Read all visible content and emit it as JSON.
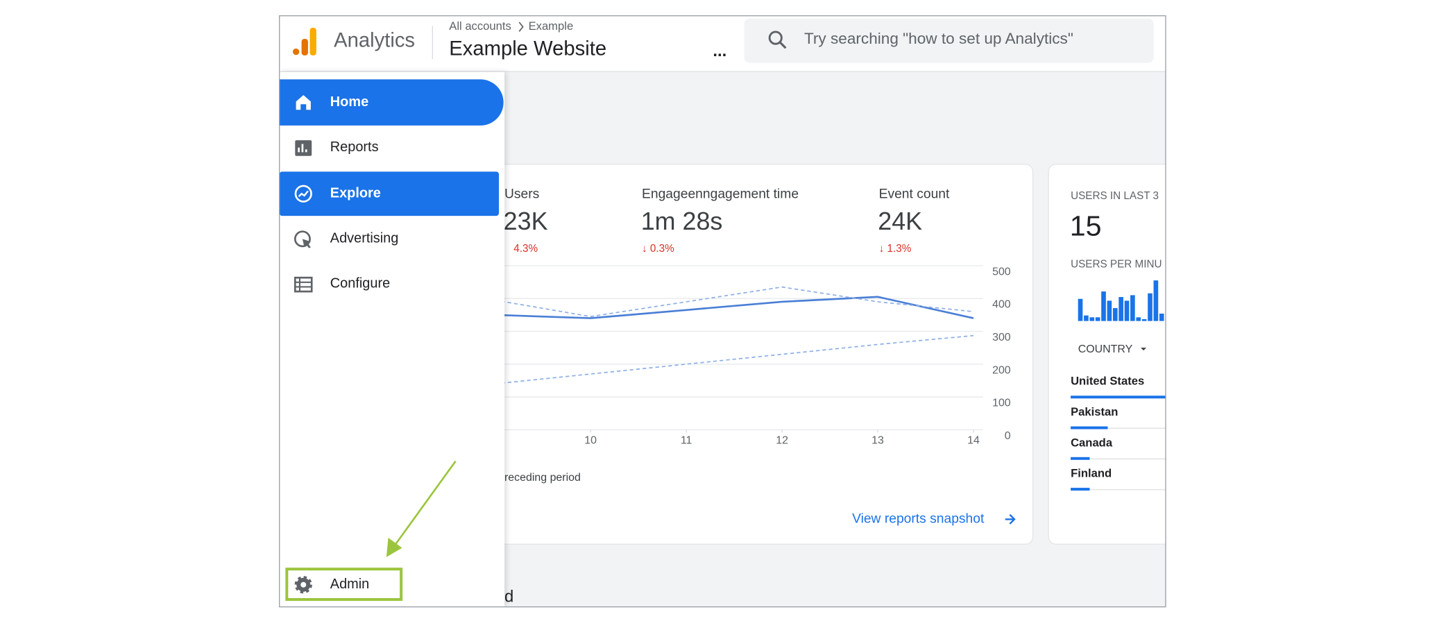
{
  "header": {
    "app_name": "Analytics",
    "breadcrumb": {
      "root": "All accounts",
      "current": "Example"
    },
    "property": "Example Website",
    "more": "...",
    "search_placeholder": "Try searching \"how to set up Analytics\""
  },
  "nav": [
    {
      "label": "Home",
      "active": true
    },
    {
      "label": "Reports",
      "active": false
    },
    {
      "label": "Explore",
      "active": true
    },
    {
      "label": "Advertising",
      "active": false
    },
    {
      "label": "Configure",
      "active": false
    }
  ],
  "admin": "Admin",
  "summary_card": {
    "metrics": [
      {
        "label": "Users",
        "value": "23K",
        "change": "4.3%"
      },
      {
        "label": "Engageenngagement time",
        "value": "1m 28s",
        "change": "↓ 0.3%"
      },
      {
        "label": "Event count",
        "value": "24K",
        "change": "↓ 1.3%"
      }
    ],
    "chart": {
      "type": "line",
      "x": [
        9,
        10,
        11,
        12,
        13,
        14
      ],
      "xlim": [
        9.1,
        14.1
      ],
      "xticks": [
        10,
        11,
        12,
        13,
        14
      ],
      "ylim": [
        0,
        500
      ],
      "yticks": [
        0,
        100,
        200,
        300,
        400,
        500
      ],
      "series": [
        {
          "color": "#4a7fd6",
          "dash": false,
          "values": [
            350,
            340,
            365,
            390,
            405,
            340
          ]
        },
        {
          "color": "#8fb0e6",
          "dash": true,
          "values": [
            395,
            345,
            390,
            435,
            390,
            360
          ]
        },
        {
          "color": "#8fb0e6",
          "dash": true,
          "values": [
            140,
            170,
            200,
            230,
            260,
            287
          ]
        }
      ]
    },
    "legend": "receding period",
    "link": "View reports snapshot"
  },
  "realtime_card": {
    "title": "USERS IN LAST 3",
    "value": "15",
    "subtitle": "USERS PER MINU",
    "bars": [
      24,
      6,
      4,
      4,
      32,
      22,
      14,
      26,
      22,
      28,
      4,
      2,
      30,
      44,
      8
    ],
    "dimension": "COUNTRY",
    "countries": [
      {
        "name": "United States",
        "share": 100
      },
      {
        "name": "Pakistan",
        "share": 39
      },
      {
        "name": "Canada",
        "share": 20
      },
      {
        "name": "Finland",
        "share": 20
      }
    ]
  },
  "footer_text": "d"
}
